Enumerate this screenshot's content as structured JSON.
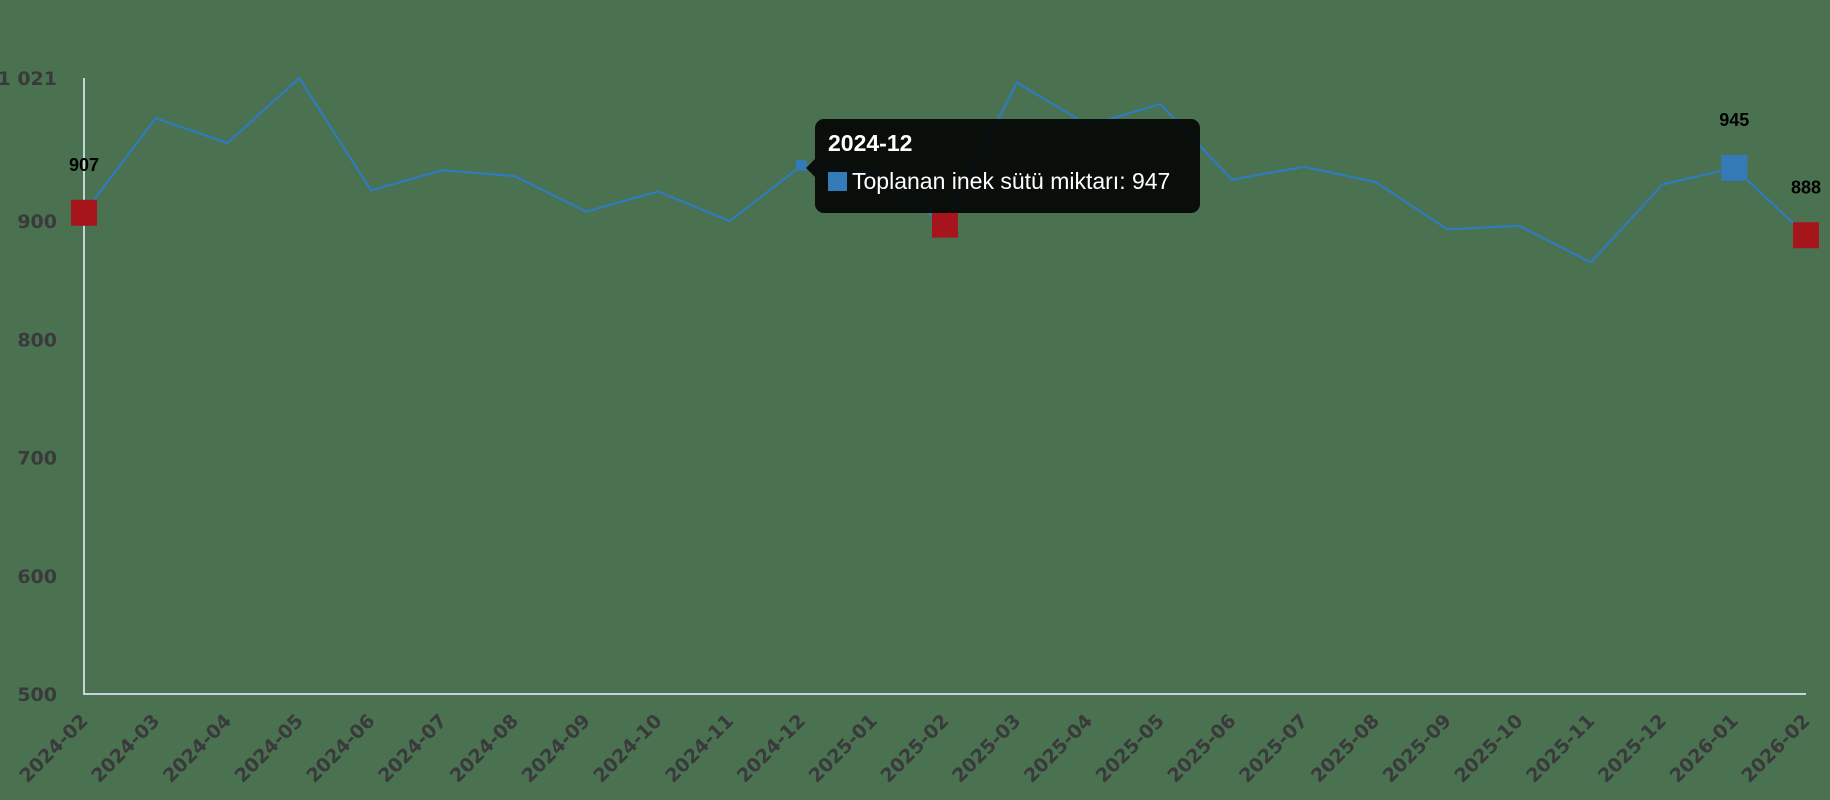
{
  "colors": {
    "background": "#4a7250",
    "line": "#2f7bbf",
    "marker_blue": "#337ab7",
    "marker_red": "#a6141c",
    "axis": "#c8d4dc",
    "tick_text": "#3a3a3c",
    "label_text": "#000000",
    "tooltip_bg": "rgba(0,0,0,0.88)"
  },
  "tooltip": {
    "title": "2024-12",
    "series_label": "Toplanan inek sütü miktarı",
    "value": "947",
    "text": "Toplanan inek sütü miktarı: 947"
  },
  "chart_data": {
    "type": "line",
    "title": "",
    "xlabel": "",
    "ylabel": "",
    "ylim": [
      500,
      1021
    ],
    "grid": false,
    "legend": "none",
    "y_ticks": [
      {
        "value": 1021,
        "label": "1 021"
      },
      {
        "value": 900,
        "label": "900"
      },
      {
        "value": 800,
        "label": "800"
      },
      {
        "value": 700,
        "label": "700"
      },
      {
        "value": 600,
        "label": "600"
      },
      {
        "value": 500,
        "label": "500"
      }
    ],
    "categories": [
      "2024-02",
      "2024-03",
      "2024-04",
      "2024-05",
      "2024-06",
      "2024-07",
      "2024-08",
      "2024-09",
      "2024-10",
      "2024-11",
      "2024-12",
      "2025-01",
      "2025-02",
      "2025-03",
      "2025-04",
      "2025-05",
      "2025-06",
      "2025-07",
      "2025-08",
      "2025-09",
      "2025-10",
      "2025-11",
      "2025-12",
      "2026-01",
      "2026-02"
    ],
    "series": [
      {
        "name": "Toplanan inek sütü miktarı",
        "values": [
          907,
          987,
          966,
          1021,
          926,
          943,
          938,
          908,
          925,
          900,
          947,
          941,
          897,
          1017,
          981,
          999,
          935,
          946,
          933,
          893,
          896,
          865,
          931,
          945,
          888
        ]
      }
    ],
    "markers": [
      {
        "index": 0,
        "color": "red",
        "size": 26,
        "label": "907"
      },
      {
        "index": 10,
        "color": "blue",
        "size": 11,
        "label": ""
      },
      {
        "index": 12,
        "color": "red",
        "size": 26,
        "label": ""
      },
      {
        "index": 23,
        "color": "blue",
        "size": 26,
        "label": "945"
      },
      {
        "index": 24,
        "color": "red",
        "size": 26,
        "label": "888"
      }
    ],
    "hovered_index": 10
  }
}
